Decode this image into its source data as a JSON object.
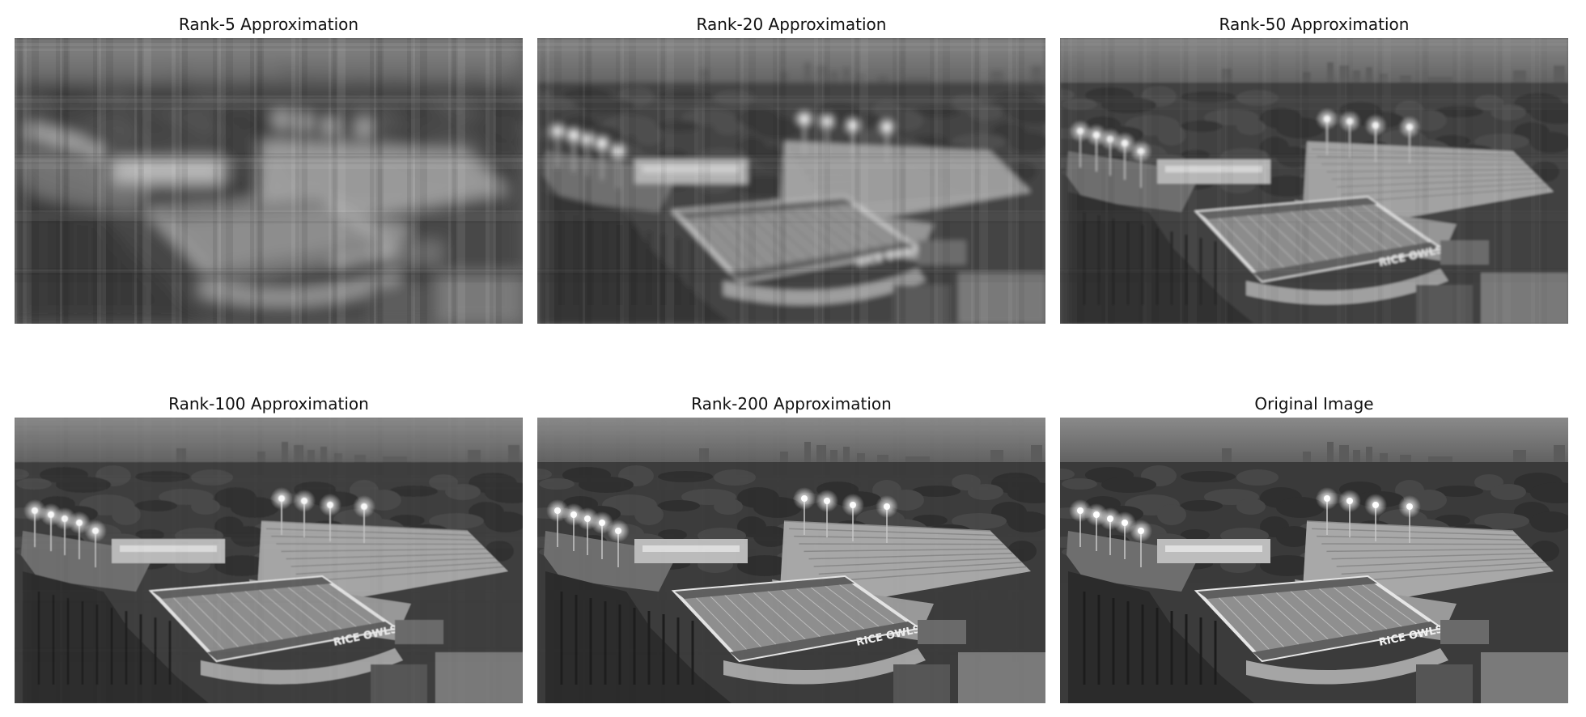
{
  "panels": [
    {
      "title": "Rank-5 Approximation",
      "blur": 9,
      "noise": 0.9,
      "streak": 0.55
    },
    {
      "title": "Rank-20 Approximation",
      "blur": 3.2,
      "noise": 0.6,
      "streak": 0.35
    },
    {
      "title": "Rank-50 Approximation",
      "blur": 1.2,
      "noise": 0.4,
      "streak": 0.18
    },
    {
      "title": "Rank-100 Approximation",
      "blur": 0.45,
      "noise": 0.2,
      "streak": 0.06
    },
    {
      "title": "Rank-200 Approximation",
      "blur": 0.15,
      "noise": 0.1,
      "streak": 0.02
    },
    {
      "title": "Original Image",
      "blur": 0,
      "noise": 0,
      "streak": 0
    }
  ],
  "scene_text": {
    "endzone": "RICE OWLS"
  }
}
